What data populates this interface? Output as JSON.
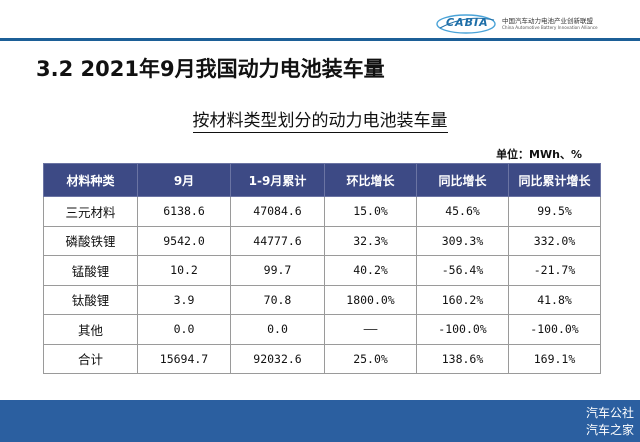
{
  "header": {
    "logo_text": "CABIA",
    "logo_cn": "中国汽车动力电池产业创新联盟",
    "logo_en": "China Automotive Battery Innovation Alliance"
  },
  "section_title": "3.2 2021年9月我国动力电池装车量",
  "table_title": "按材料类型划分的动力电池装车量",
  "unit": "单位：MWh、%",
  "table": {
    "headers": [
      "材料种类",
      "9月",
      "1-9月累计",
      "环比增长",
      "同比增长",
      "同比累计增长"
    ],
    "rows": [
      [
        "三元材料",
        "6138.6",
        "47084.6",
        "15.0%",
        "45.6%",
        "99.5%"
      ],
      [
        "磷酸铁锂",
        "9542.0",
        "44777.6",
        "32.3%",
        "309.3%",
        "332.0%"
      ],
      [
        "锰酸锂",
        "10.2",
        "99.7",
        "40.2%",
        "-56.4%",
        "-21.7%"
      ],
      [
        "钛酸锂",
        "3.9",
        "70.8",
        "1800.0%",
        "160.2%",
        "41.8%"
      ],
      [
        "其他",
        "0.0",
        "0.0",
        "——",
        "-100.0%",
        "-100.0%"
      ],
      [
        "合计",
        "15694.7",
        "92032.6",
        "25.0%",
        "138.6%",
        "169.1%"
      ]
    ]
  },
  "watermark": [
    "汽车公社",
    "汽车之家"
  ],
  "colors": {
    "header_fill": "#3d4a85",
    "rule": "#1c5f97",
    "footer": "#2b5fa0",
    "logo": "#1f6fa8"
  }
}
